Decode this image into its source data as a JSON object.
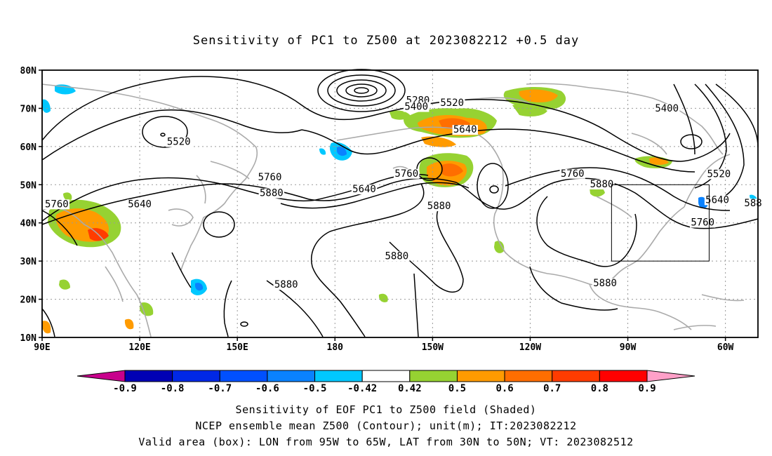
{
  "title": "Sensitivity of PC1 to Z500 at 2023082212 +0.5 day",
  "captions": {
    "line1": "Sensitivity of EOF PC1 to Z500 field (Shaded)",
    "line2": "NCEP ensemble mean Z500 (Contour); unit(m); IT:2023082212",
    "line3": "Valid area (box): LON from 95W to 65W, LAT from 30N to 50N; VT: 2023082512"
  },
  "map": {
    "lon_range": [
      90,
      310
    ],
    "lat_range": [
      10,
      80
    ],
    "lon_ticks": [
      {
        "value": 90,
        "label": "90E"
      },
      {
        "value": 120,
        "label": "120E"
      },
      {
        "value": 150,
        "label": "150E"
      },
      {
        "value": 180,
        "label": "180"
      },
      {
        "value": 210,
        "label": "150W"
      },
      {
        "value": 240,
        "label": "120W"
      },
      {
        "value": 270,
        "label": "90W"
      },
      {
        "value": 300,
        "label": "60W"
      }
    ],
    "lat_ticks": [
      {
        "value": 80,
        "label": "80N"
      },
      {
        "value": 70,
        "label": "70N"
      },
      {
        "value": 60,
        "label": "60N"
      },
      {
        "value": 50,
        "label": "50N"
      },
      {
        "value": 40,
        "label": "40N"
      },
      {
        "value": 30,
        "label": "30N"
      },
      {
        "value": 20,
        "label": "20N"
      },
      {
        "value": 10,
        "label": "10N"
      }
    ],
    "grid": "dotted",
    "valid_box": {
      "lon_min": 265,
      "lon_max": 295,
      "lat_min": 30,
      "lat_max": 50
    }
  },
  "contours": {
    "labels": [
      {
        "text": "5280",
        "lon": 205.5,
        "lat": 71.5
      },
      {
        "text": "5400",
        "lon": 205,
        "lat": 69.8
      },
      {
        "text": "5520",
        "lon": 216,
        "lat": 70.8
      },
      {
        "text": "5640",
        "lon": 220,
        "lat": 63.8
      },
      {
        "text": "5400",
        "lon": 282,
        "lat": 69.3
      },
      {
        "text": "5520",
        "lon": 132,
        "lat": 60.6
      },
      {
        "text": "5760",
        "lon": 160,
        "lat": 51.3
      },
      {
        "text": "5880",
        "lon": 160.5,
        "lat": 47.2
      },
      {
        "text": "5640",
        "lon": 189,
        "lat": 48.2
      },
      {
        "text": "5760",
        "lon": 202,
        "lat": 52.3
      },
      {
        "text": "5880",
        "lon": 212,
        "lat": 43.8
      },
      {
        "text": "5760",
        "lon": 253,
        "lat": 52.3
      },
      {
        "text": "5880",
        "lon": 262,
        "lat": 49.5
      },
      {
        "text": "5520",
        "lon": 298,
        "lat": 52.2
      },
      {
        "text": "5640",
        "lon": 297.5,
        "lat": 45.4
      },
      {
        "text": "5760",
        "lon": 293,
        "lat": 39.5
      },
      {
        "text": "5880",
        "lon": 199,
        "lat": 30.7
      },
      {
        "text": "5880",
        "lon": 165,
        "lat": 23.2
      },
      {
        "text": "5880",
        "lon": 263,
        "lat": 23.6
      },
      {
        "text": "5760",
        "lon": 94.5,
        "lat": 44.3
      },
      {
        "text": "5640",
        "lon": 120,
        "lat": 44.3
      },
      {
        "text": "588",
        "lon": 308.5,
        "lat": 44.5
      }
    ]
  },
  "colorbar": {
    "labels": [
      "-0.9",
      "-0.8",
      "-0.7",
      "-0.6",
      "-0.5",
      "-0.42",
      "0.42",
      "0.5",
      "0.6",
      "0.7",
      "0.8",
      "0.9"
    ],
    "colors": [
      "#0000b4",
      "#0028e6",
      "#0050ff",
      "#0a82ff",
      "#00c8ff",
      "#ffffff",
      "#96d232",
      "#ff9b00",
      "#ff6e00",
      "#ff3c00",
      "#ff0000"
    ],
    "low_end_color": "#c8008c",
    "high_end_color": "#ffa0c8"
  }
}
